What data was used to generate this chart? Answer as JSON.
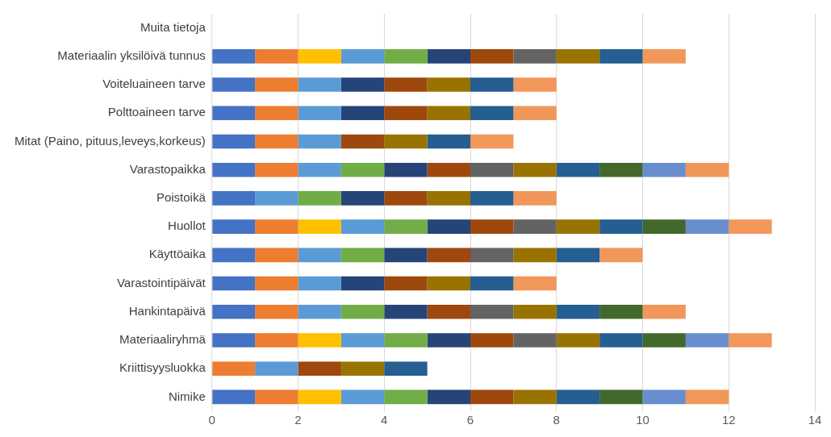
{
  "chart_data": {
    "type": "bar",
    "orientation": "horizontal",
    "stacked": true,
    "grid": "x",
    "legend": false,
    "categories": [
      "Muita tietoja",
      "Materiaalin yksilöivä tunnus",
      "Voiteluaineen tarve",
      "Polttoaineen tarve",
      "Mitat (Paino, pituus,leveys,korkeus)",
      "Varastopaikka",
      "Poistoikä",
      "Huollot",
      "Käyttöaika",
      "Varastointipäivät",
      "Hankintapäivä",
      "Materiaaliryhmä",
      "Kriittisyysluokka",
      "Nimike"
    ],
    "xlim": [
      0,
      14
    ],
    "xticks": [
      0,
      2,
      4,
      6,
      8,
      10,
      12,
      14
    ],
    "series": [
      {
        "color": "#4472c4",
        "values": [
          null,
          1,
          1,
          1,
          1,
          1,
          1,
          1,
          1,
          1,
          1,
          1,
          null,
          1
        ]
      },
      {
        "color": "#ed7d31",
        "values": [
          null,
          1,
          1,
          1,
          1,
          1,
          null,
          1,
          1,
          1,
          1,
          1,
          1,
          1
        ]
      },
      {
        "color": "#ffc000",
        "values": [
          null,
          1,
          null,
          null,
          null,
          null,
          null,
          1,
          null,
          null,
          null,
          1,
          null,
          1
        ]
      },
      {
        "color": "#5b9bd5",
        "values": [
          null,
          1,
          1,
          1,
          1,
          1,
          1,
          1,
          1,
          1,
          1,
          1,
          1,
          1
        ]
      },
      {
        "color": "#70ad47",
        "values": [
          null,
          1,
          null,
          null,
          null,
          1,
          1,
          1,
          1,
          null,
          1,
          1,
          null,
          1
        ]
      },
      {
        "color": "#264478",
        "values": [
          null,
          1,
          1,
          1,
          null,
          1,
          1,
          1,
          1,
          1,
          1,
          1,
          null,
          1
        ]
      },
      {
        "color": "#9e480e",
        "values": [
          null,
          1,
          1,
          1,
          1,
          1,
          1,
          1,
          1,
          1,
          1,
          1,
          1,
          1
        ]
      },
      {
        "color": "#636363",
        "values": [
          null,
          1,
          null,
          null,
          null,
          1,
          null,
          1,
          1,
          null,
          1,
          1,
          null,
          null
        ]
      },
      {
        "color": "#997300",
        "values": [
          null,
          1,
          1,
          1,
          1,
          1,
          1,
          1,
          1,
          1,
          1,
          1,
          1,
          1
        ]
      },
      {
        "color": "#255e91",
        "values": [
          null,
          1,
          1,
          1,
          1,
          1,
          1,
          1,
          1,
          1,
          1,
          1,
          1,
          1
        ]
      },
      {
        "color": "#43682b",
        "values": [
          null,
          null,
          null,
          null,
          null,
          1,
          null,
          1,
          null,
          null,
          1,
          1,
          null,
          1
        ]
      },
      {
        "color": "#698ed0",
        "values": [
          null,
          null,
          null,
          null,
          null,
          1,
          null,
          1,
          null,
          null,
          null,
          1,
          null,
          1
        ]
      },
      {
        "color": "#f1975a",
        "values": [
          null,
          1,
          1,
          1,
          1,
          1,
          1,
          1,
          1,
          1,
          1,
          1,
          null,
          1
        ]
      }
    ]
  }
}
